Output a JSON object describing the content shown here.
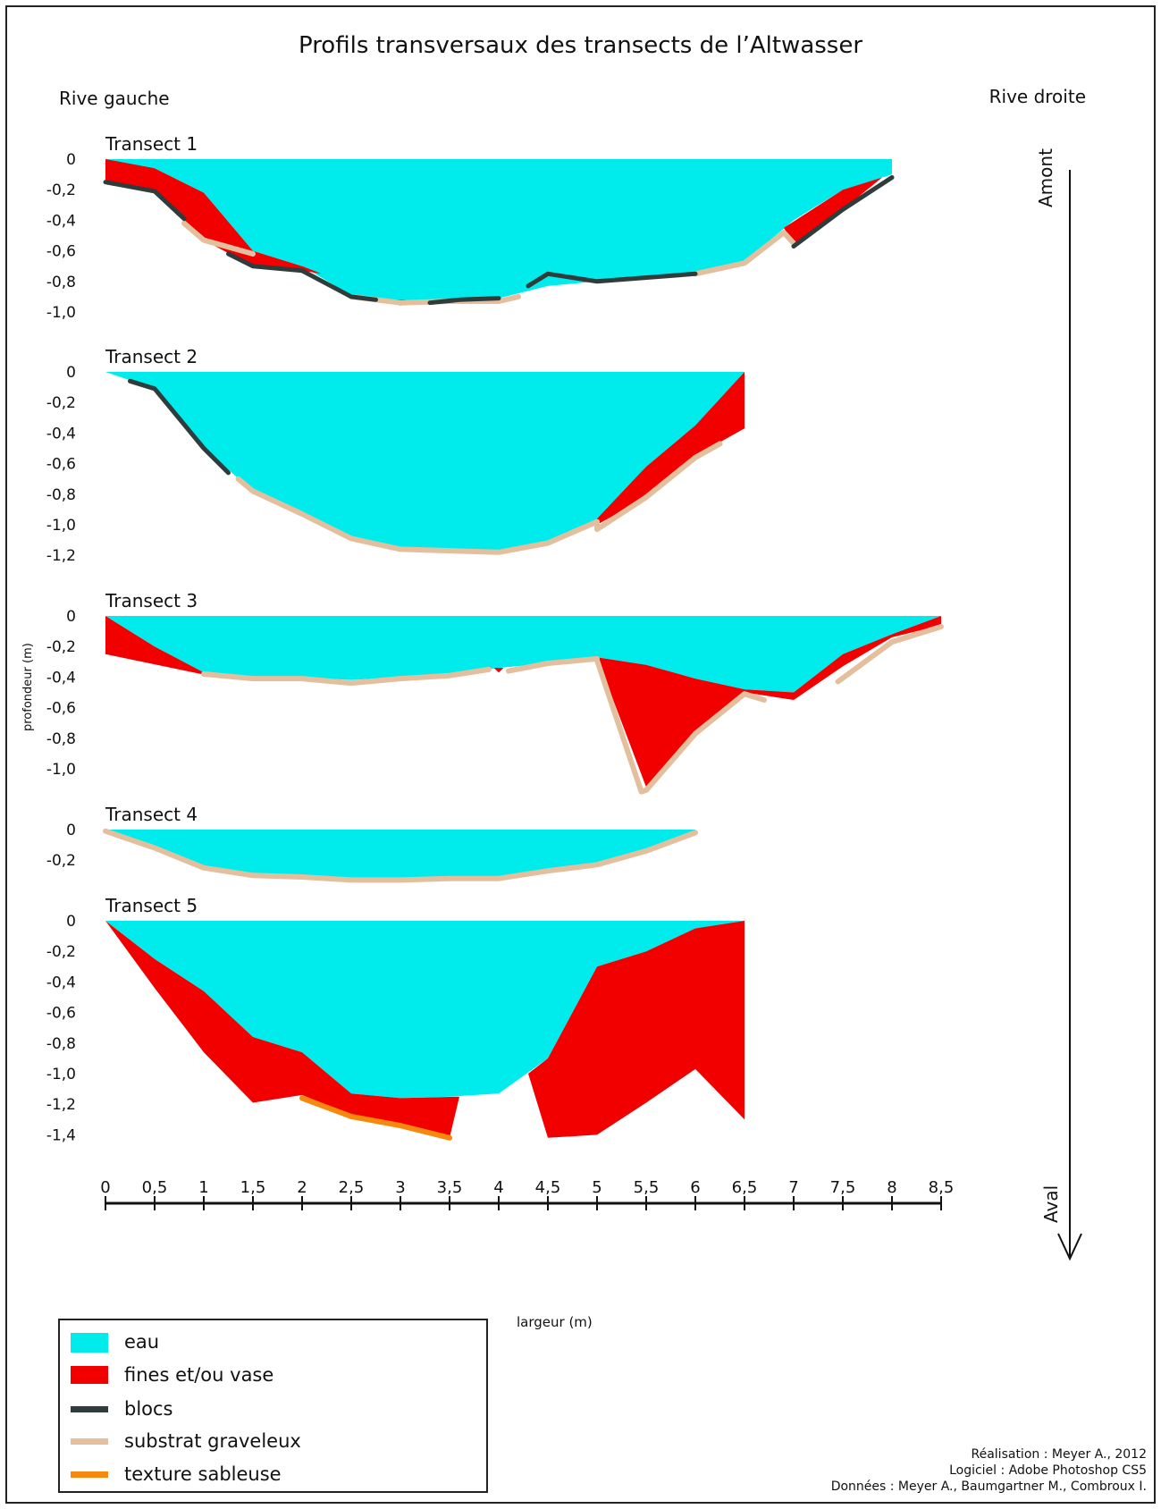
{
  "title": "Profils transversaux des transects de l’Altwasser",
  "bank_left": "Rive gauche",
  "bank_right": "Rive droite",
  "ylabel": "profondeur (m)",
  "xlabel": "largeur (m)",
  "upstream": "Amont",
  "downstream": "Aval",
  "legend": [
    {
      "label": "eau",
      "color": "#00ecec",
      "kind": "box"
    },
    {
      "label": "fines et/ou vase",
      "color": "#f20000",
      "kind": "box"
    },
    {
      "label": "blocs",
      "color": "#2e3c3c",
      "kind": "line"
    },
    {
      "label": "substrat graveleux",
      "color": "#e3bf9e",
      "kind": "line"
    },
    {
      "label": "texture sableuse",
      "color": "#f7880e",
      "kind": "line"
    }
  ],
  "credits": [
    "Réalisation : Meyer A., 2012",
    "Logiciel : Adobe Photoshop CS5",
    "Données : Meyer A., Baumgartner M., Combroux I."
  ],
  "colors": {
    "water": "#00ecec",
    "fines": "#f20000",
    "blocks": "#2e3c3c",
    "gravel": "#e3bf9e",
    "sand": "#f7880e"
  },
  "chart_data": {
    "type": "area",
    "xlim": [
      0,
      8.5
    ],
    "x_ticks": [
      "0",
      "0,5",
      "1",
      "1,5",
      "2",
      "2,5",
      "3",
      "3,5",
      "4",
      "4,5",
      "5",
      "5,5",
      "6",
      "6,5",
      "7",
      "7,5",
      "8",
      "8,5"
    ],
    "transects": [
      {
        "name": "Transect 1",
        "ylim": [
          -1.0,
          0
        ],
        "y_ticks": [
          "0",
          "-0,2",
          "-0,4",
          "-0,6",
          "-0,8",
          "-1,0"
        ],
        "water_bottom": [
          [
            0,
            -0.04
          ],
          [
            0.5,
            -0.06
          ],
          [
            1,
            -0.22
          ],
          [
            1.5,
            -0.6
          ],
          [
            2,
            -0.7
          ],
          [
            2.5,
            -0.89
          ],
          [
            3,
            -0.93
          ],
          [
            3.5,
            -0.92
          ],
          [
            4,
            -0.91
          ],
          [
            4.5,
            -0.83
          ],
          [
            5,
            -0.8
          ],
          [
            6,
            -0.75
          ],
          [
            6.5,
            -0.67
          ],
          [
            7,
            -0.4
          ],
          [
            7.5,
            -0.2
          ],
          [
            8,
            -0.1
          ]
        ],
        "fines": [
          [
            [
              0,
              0
            ],
            [
              0.5,
              -0.06
            ],
            [
              1,
              -0.22
            ],
            [
              1.5,
              -0.6
            ],
            [
              2,
              -0.7
            ],
            [
              2.2,
              -0.75
            ],
            [
              2,
              -0.73
            ],
            [
              1.5,
              -0.7
            ],
            [
              1,
              -0.53
            ],
            [
              0.5,
              -0.21
            ],
            [
              0,
              -0.15
            ]
          ],
          [
            [
              6.9,
              -0.45
            ],
            [
              7.5,
              -0.2
            ],
            [
              7.9,
              -0.12
            ],
            [
              7.5,
              -0.33
            ],
            [
              7,
              -0.56
            ]
          ],
          [
            [
              2.95,
              -0.92
            ],
            [
              3.05,
              -0.92
            ],
            [
              3.0,
              -0.96
            ]
          ]
        ],
        "gravel": [
          [
            [
              0.8,
              -0.42
            ],
            [
              1,
              -0.53
            ],
            [
              1.5,
              -0.62
            ]
          ],
          [
            [
              2.5,
              -0.9
            ],
            [
              3,
              -0.94
            ],
            [
              3.5,
              -0.93
            ],
            [
              4,
              -0.93
            ],
            [
              4.2,
              -0.9
            ]
          ],
          [
            [
              6,
              -0.75
            ],
            [
              6.5,
              -0.68
            ],
            [
              6.9,
              -0.48
            ],
            [
              7,
              -0.55
            ]
          ]
        ],
        "blocks": [
          [
            [
              0,
              -0.15
            ],
            [
              0.5,
              -0.21
            ],
            [
              0.8,
              -0.39
            ]
          ],
          [
            [
              1.25,
              -0.62
            ],
            [
              1.5,
              -0.7
            ],
            [
              2,
              -0.73
            ],
            [
              2.5,
              -0.9
            ],
            [
              2.75,
              -0.92
            ]
          ],
          [
            [
              3.3,
              -0.94
            ],
            [
              3.6,
              -0.92
            ],
            [
              4,
              -0.91
            ]
          ],
          [
            [
              4.3,
              -0.83
            ],
            [
              4.5,
              -0.75
            ],
            [
              5,
              -0.8
            ],
            [
              6,
              -0.75
            ]
          ],
          [
            [
              7,
              -0.57
            ],
            [
              7.5,
              -0.33
            ],
            [
              8,
              -0.12
            ]
          ]
        ],
        "sand": []
      },
      {
        "name": "Transect 2",
        "ylim": [
          -1.2,
          0
        ],
        "y_ticks": [
          "0",
          "-0,2",
          "-0,4",
          "-0,6",
          "-0,8",
          "-1,0",
          "-1,2"
        ],
        "water_bottom": [
          [
            0,
            0
          ],
          [
            0.5,
            -0.11
          ],
          [
            1,
            -0.5
          ],
          [
            1.5,
            -0.78
          ],
          [
            2,
            -0.93
          ],
          [
            2.5,
            -1.08
          ],
          [
            3,
            -1.15
          ],
          [
            4,
            -1.17
          ],
          [
            4.5,
            -1.11
          ],
          [
            5,
            -0.97
          ],
          [
            5.5,
            -0.62
          ],
          [
            6,
            -0.35
          ],
          [
            6.5,
            0
          ]
        ],
        "fines": [
          [
            [
              5,
              -0.96
            ],
            [
              5.5,
              -0.62
            ],
            [
              6,
              -0.35
            ],
            [
              6.5,
              0
            ],
            [
              6.5,
              -0.37
            ],
            [
              6,
              -0.55
            ],
            [
              5.5,
              -0.82
            ],
            [
              5,
              -1.0
            ]
          ]
        ],
        "gravel": [
          [
            [
              1.35,
              -0.7
            ],
            [
              1.5,
              -0.78
            ],
            [
              2,
              -0.93
            ],
            [
              2.5,
              -1.09
            ],
            [
              3,
              -1.16
            ],
            [
              4,
              -1.18
            ],
            [
              4.5,
              -1.12
            ],
            [
              5,
              -0.98
            ],
            [
              5,
              -1.03
            ],
            [
              5.5,
              -0.82
            ],
            [
              6,
              -0.56
            ],
            [
              6.25,
              -0.47
            ]
          ]
        ],
        "blocks": [
          [
            [
              0.25,
              -0.06
            ],
            [
              0.5,
              -0.11
            ],
            [
              1,
              -0.5
            ],
            [
              1.25,
              -0.66
            ]
          ]
        ],
        "sand": []
      },
      {
        "name": "Transect 3",
        "ylim": [
          -1.0,
          0
        ],
        "y_ticks": [
          "0",
          "-0,2",
          "-0,4",
          "-0,6",
          "-0,8",
          "-1,0"
        ],
        "water_bottom": [
          [
            0,
            0
          ],
          [
            0.5,
            -0.2
          ],
          [
            1,
            -0.37
          ],
          [
            1.5,
            -0.4
          ],
          [
            2,
            -0.4
          ],
          [
            2.5,
            -0.42
          ],
          [
            3,
            -0.4
          ],
          [
            3.5,
            -0.38
          ],
          [
            4,
            -0.34
          ],
          [
            4.5,
            -0.31
          ],
          [
            5,
            -0.27
          ],
          [
            5.5,
            -0.32
          ],
          [
            6,
            -0.41
          ],
          [
            6.5,
            -0.48
          ],
          [
            7,
            -0.5
          ],
          [
            7.5,
            -0.25
          ],
          [
            8,
            -0.12
          ],
          [
            8.5,
            0
          ]
        ],
        "fines": [
          [
            [
              0,
              0
            ],
            [
              0.5,
              -0.2
            ],
            [
              1,
              -0.37
            ],
            [
              1.05,
              -0.39
            ],
            [
              0,
              -0.25
            ]
          ],
          [
            [
              3.95,
              -0.34
            ],
            [
              4.05,
              -0.34
            ],
            [
              4,
              -0.37
            ]
          ],
          [
            [
              5,
              -0.27
            ],
            [
              5.5,
              -0.32
            ],
            [
              6,
              -0.41
            ],
            [
              6.5,
              -0.48
            ],
            [
              7,
              -0.5
            ],
            [
              7.5,
              -0.25
            ],
            [
              8,
              -0.12
            ],
            [
              8.5,
              0
            ],
            [
              8.5,
              -0.06
            ],
            [
              8,
              -0.14
            ],
            [
              7.5,
              -0.33
            ],
            [
              7,
              -0.55
            ],
            [
              6.5,
              -0.5
            ],
            [
              6,
              -0.76
            ],
            [
              5.5,
              -1.12
            ]
          ]
        ],
        "gravel": [
          [
            [
              1,
              -0.38
            ],
            [
              1.5,
              -0.41
            ],
            [
              2,
              -0.41
            ],
            [
              2.5,
              -0.44
            ],
            [
              3,
              -0.41
            ],
            [
              3.5,
              -0.39
            ],
            [
              3.9,
              -0.35
            ]
          ],
          [
            [
              4.1,
              -0.36
            ],
            [
              4.5,
              -0.31
            ],
            [
              5,
              -0.28
            ]
          ],
          [
            [
              5,
              -0.29
            ],
            [
              5.45,
              -1.15
            ],
            [
              5.5,
              -1.14
            ],
            [
              6,
              -0.77
            ],
            [
              6.5,
              -0.51
            ],
            [
              6.7,
              -0.55
            ]
          ],
          [
            [
              7.45,
              -0.43
            ],
            [
              8,
              -0.17
            ],
            [
              8.5,
              -0.07
            ]
          ]
        ],
        "blocks": [],
        "sand": []
      },
      {
        "name": "Transect 4",
        "ylim": [
          -0.2,
          0
        ],
        "y_ticks": [
          "0",
          "-0,2"
        ],
        "water_bottom": [
          [
            0,
            0
          ],
          [
            0.5,
            -0.11
          ],
          [
            1,
            -0.24
          ],
          [
            1.5,
            -0.29
          ],
          [
            2,
            -0.3
          ],
          [
            2.5,
            -0.32
          ],
          [
            3,
            -0.32
          ],
          [
            3.5,
            -0.31
          ],
          [
            4,
            -0.31
          ],
          [
            4.5,
            -0.26
          ],
          [
            5,
            -0.22
          ],
          [
            5.5,
            -0.13
          ],
          [
            6,
            -0.01
          ]
        ],
        "fines": [],
        "gravel": [
          [
            [
              0,
              -0.01
            ],
            [
              0.5,
              -0.12
            ],
            [
              1,
              -0.25
            ],
            [
              1.5,
              -0.3
            ],
            [
              2,
              -0.31
            ],
            [
              2.5,
              -0.33
            ],
            [
              3,
              -0.33
            ],
            [
              3.5,
              -0.32
            ],
            [
              4,
              -0.32
            ],
            [
              4.5,
              -0.27
            ],
            [
              5,
              -0.23
            ],
            [
              5.5,
              -0.14
            ],
            [
              6,
              -0.02
            ]
          ]
        ],
        "blocks": [],
        "sand": []
      },
      {
        "name": "Transect 5",
        "ylim": [
          -1.4,
          0
        ],
        "y_ticks": [
          "0",
          "-0,2",
          "-0,4",
          "-0,6",
          "-0,8",
          "-1,0",
          "-1,2",
          "-1,4"
        ],
        "water_bottom": [
          [
            0,
            0
          ],
          [
            0.5,
            -0.25
          ],
          [
            1,
            -0.46
          ],
          [
            1.5,
            -0.76
          ],
          [
            2,
            -0.86
          ],
          [
            2.5,
            -1.13
          ],
          [
            3,
            -1.16
          ],
          [
            3.5,
            -1.15
          ],
          [
            4,
            -1.13
          ],
          [
            4.5,
            -0.9
          ],
          [
            5,
            -0.3
          ],
          [
            5.5,
            -0.2
          ],
          [
            6,
            -0.05
          ],
          [
            6.5,
            0
          ]
        ],
        "fines": [
          [
            [
              0,
              0
            ],
            [
              0.5,
              -0.25
            ],
            [
              1,
              -0.46
            ],
            [
              1.5,
              -0.76
            ],
            [
              2,
              -0.86
            ],
            [
              2.5,
              -1.13
            ],
            [
              3,
              -1.16
            ],
            [
              3.6,
              -1.15
            ],
            [
              3.5,
              -1.42
            ],
            [
              3,
              -1.33
            ],
            [
              2.5,
              -1.27
            ],
            [
              2,
              -1.14
            ],
            [
              1.5,
              -1.19
            ],
            [
              1,
              -0.86
            ],
            [
              0.5,
              -0.44
            ]
          ],
          [
            [
              4.3,
              -1.0
            ],
            [
              4.5,
              -0.9
            ],
            [
              5,
              -0.3
            ],
            [
              5.5,
              -0.2
            ],
            [
              6,
              -0.05
            ],
            [
              6.5,
              0
            ],
            [
              6.5,
              -1.3
            ],
            [
              6,
              -0.97
            ],
            [
              5.5,
              -1.19
            ],
            [
              5,
              -1.4
            ],
            [
              4.5,
              -1.42
            ]
          ]
        ],
        "gravel": [],
        "blocks": [],
        "sand": [
          [
            [
              2,
              -1.16
            ],
            [
              2.5,
              -1.28
            ],
            [
              3,
              -1.34
            ],
            [
              3.5,
              -1.42
            ]
          ]
        ]
      }
    ]
  }
}
